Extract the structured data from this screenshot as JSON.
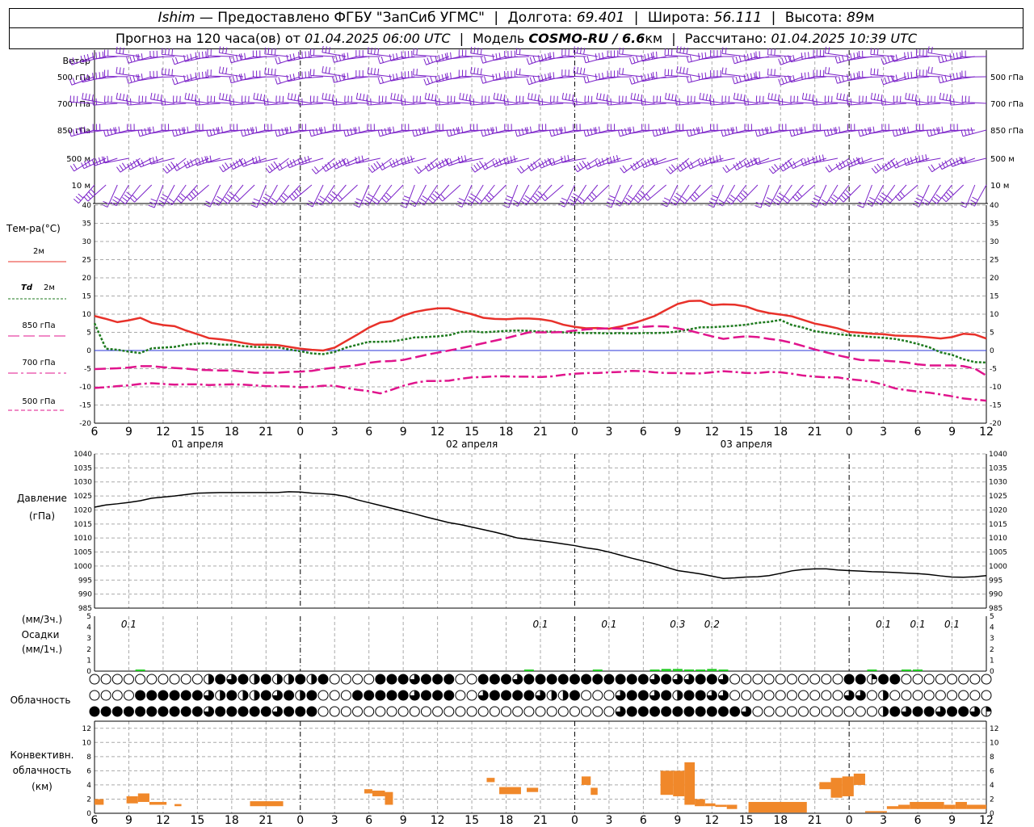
{
  "header": {
    "station": "Ishim",
    "provider": "— Предоставлено ФГБУ \"ЗапСиб УГМС\"",
    "lon_label": "Долгота:",
    "lon": "69.401",
    "lat_label": "Широта:",
    "lat": "56.111",
    "alt_label": "Высота:",
    "alt": "89",
    "alt_unit": "м",
    "fc_label": "Прогноз на 120 часа(ов) от",
    "fc_start": "01.04.2025 06:00 UTC",
    "model_label": "Модель",
    "model": "COSMO-RU / 6.6",
    "model_unit": "км",
    "calc_label": "Рассчитано:",
    "calc_time": "01.04.2025 10:39 UTC"
  },
  "chart_data": [
    {
      "panel": "wind",
      "type": "wind-barbs",
      "title": "Ветер",
      "levels": [
        "500 гПа",
        "700 гПа",
        "850 гПа",
        "500 м",
        "10 м"
      ],
      "color": "#7b22c9"
    },
    {
      "panel": "temperature",
      "type": "line",
      "title": "Тем-ра(°С)",
      "ylim": [
        -20,
        40
      ],
      "yticks": [
        -20,
        -15,
        -10,
        -5,
        0,
        5,
        10,
        15,
        20,
        25,
        30,
        35,
        40
      ],
      "x_hours": [
        6,
        7,
        8,
        9,
        10,
        11,
        12,
        13,
        14,
        15,
        16,
        17,
        18,
        19,
        20,
        21,
        22,
        23,
        24,
        25,
        26,
        27,
        28,
        29,
        30,
        31,
        32,
        33,
        34,
        35,
        36,
        37,
        38,
        39,
        40,
        41,
        42,
        43,
        44,
        45,
        46,
        47,
        48,
        49,
        50,
        51,
        52,
        53,
        54,
        55,
        56,
        57,
        58,
        59,
        60,
        61,
        62,
        63,
        64,
        65,
        66,
        67,
        68,
        69,
        70,
        71,
        72,
        73,
        74,
        75,
        76,
        77,
        78,
        79,
        80,
        81,
        82,
        83,
        84
      ],
      "series": [
        {
          "name": "2м",
          "style": "solid",
          "color": "#e8312a",
          "values": [
            9.5,
            8.7,
            7.8,
            8.3,
            9.0,
            7.6,
            7.0,
            6.7,
            5.5,
            4.5,
            3.4,
            3.1,
            2.7,
            2.1,
            1.6,
            1.6,
            1.5,
            1.0,
            0.5,
            0.2,
            0.0,
            0.8,
            2.6,
            4.4,
            6.3,
            7.7,
            8.1,
            9.6,
            10.6,
            11.2,
            11.6,
            11.6,
            10.7,
            10.0,
            9.0,
            8.7,
            8.6,
            8.8,
            8.8,
            8.6,
            8.1,
            7.1,
            6.5,
            6.1,
            6.2,
            6.0,
            6.6,
            7.4,
            8.4,
            9.5,
            11.2,
            12.8,
            13.6,
            13.7,
            12.5,
            12.7,
            12.6,
            12.1,
            11.0,
            10.3,
            9.9,
            9.4,
            8.4,
            7.4,
            6.8,
            6.1,
            5.1,
            4.9,
            4.6,
            4.5,
            4.1,
            4.0,
            3.9,
            3.6,
            3.3,
            3.7,
            4.6,
            4.4,
            3.3
          ]
        },
        {
          "name": "Td 2м",
          "style": "dotted",
          "color": "#1e7a1e",
          "values": [
            7.5,
            0.5,
            0.2,
            -0.3,
            -0.7,
            0.6,
            0.8,
            1.0,
            1.6,
            1.9,
            2.0,
            1.6,
            1.6,
            1.2,
            1.0,
            0.9,
            0.9,
            0.3,
            -0.2,
            -0.8,
            -1.0,
            -0.4,
            0.8,
            1.6,
            2.4,
            2.4,
            2.5,
            3.0,
            3.6,
            3.7,
            3.9,
            4.2,
            5.1,
            5.3,
            5.0,
            5.2,
            5.4,
            5.5,
            5.4,
            5.2,
            5.2,
            5.0,
            4.9,
            4.8,
            4.8,
            4.7,
            4.8,
            4.7,
            4.8,
            4.8,
            4.9,
            5.2,
            5.8,
            6.4,
            6.4,
            6.6,
            6.8,
            7.1,
            7.6,
            7.9,
            8.4,
            7.0,
            6.3,
            5.3,
            4.9,
            4.5,
            4.2,
            4.0,
            3.7,
            3.5,
            3.2,
            2.6,
            1.8,
            0.9,
            -0.5,
            -1.2,
            -2.4,
            -3.2,
            -3.3
          ]
        },
        {
          "name": "850 гПа",
          "style": "dashed",
          "color": "#e0148c",
          "values": [
            -5.1,
            -5.0,
            -4.9,
            -4.7,
            -4.3,
            -4.3,
            -4.6,
            -4.8,
            -5.0,
            -5.3,
            -5.4,
            -5.5,
            -5.5,
            -5.8,
            -6.1,
            -6.1,
            -6.1,
            -5.9,
            -5.8,
            -5.6,
            -5.1,
            -4.7,
            -4.4,
            -4.0,
            -3.4,
            -3.0,
            -2.9,
            -2.6,
            -1.9,
            -1.2,
            -0.6,
            0.0,
            0.6,
            1.3,
            2.0,
            2.7,
            3.4,
            4.2,
            5.0,
            5.0,
            5.0,
            5.1,
            5.5,
            5.8,
            6.0,
            6.1,
            6.0,
            6.2,
            6.5,
            6.7,
            6.6,
            6.1,
            5.5,
            4.7,
            3.9,
            3.2,
            3.6,
            3.9,
            3.7,
            3.2,
            2.8,
            2.1,
            1.2,
            0.3,
            -0.5,
            -1.3,
            -2.0,
            -2.6,
            -2.7,
            -2.8,
            -3.0,
            -3.3,
            -3.8,
            -4.1,
            -4.1,
            -4.1,
            -4.3,
            -5.0,
            -6.9
          ]
        },
        {
          "name": "700 гПа",
          "style": "dashdot",
          "color": "#e0148c",
          "values": [
            -10.3,
            -10.1,
            -9.8,
            -9.6,
            -9.2,
            -9.0,
            -9.2,
            -9.4,
            -9.3,
            -9.3,
            -9.5,
            -9.4,
            -9.3,
            -9.4,
            -9.6,
            -9.8,
            -9.8,
            -9.9,
            -10.1,
            -10.0,
            -9.7,
            -9.7,
            -10.3,
            -10.8,
            -11.2,
            -11.8,
            -10.8,
            -9.7,
            -8.9,
            -8.4,
            -8.4,
            -8.3,
            -7.8,
            -7.4,
            -7.3,
            -7.1,
            -7.1,
            -7.2,
            -7.2,
            -7.3,
            -7.1,
            -6.7,
            -6.4,
            -6.2,
            -6.2,
            -6.0,
            -5.9,
            -5.6,
            -5.7,
            -6.0,
            -6.2,
            -6.2,
            -6.3,
            -6.3,
            -6.0,
            -5.7,
            -5.9,
            -6.2,
            -6.2,
            -5.9,
            -6.0,
            -6.4,
            -6.9,
            -7.2,
            -7.4,
            -7.4,
            -7.9,
            -8.2,
            -8.6,
            -9.4,
            -10.4,
            -10.9,
            -11.3,
            -11.6,
            -12.1,
            -12.6,
            -13.2,
            -13.5,
            -13.8
          ]
        }
      ],
      "legend_extra": [
        "500 гПа"
      ]
    },
    {
      "panel": "pressure",
      "type": "line",
      "title": "Давление",
      "subtitle": "(гПа)",
      "ylim": [
        985,
        1040
      ],
      "yticks": [
        985,
        990,
        995,
        1000,
        1005,
        1010,
        1015,
        1020,
        1025,
        1030,
        1035,
        1040
      ],
      "series": [
        {
          "name": "",
          "color": "#000000",
          "values": [
            1021.0,
            1021.8,
            1022.2,
            1022.7,
            1023.3,
            1024.2,
            1024.6,
            1025.0,
            1025.5,
            1026.0,
            1026.1,
            1026.2,
            1026.2,
            1026.2,
            1026.2,
            1026.2,
            1026.2,
            1026.5,
            1026.4,
            1026.0,
            1025.8,
            1025.5,
            1024.8,
            1023.6,
            1022.6,
            1021.6,
            1020.6,
            1019.6,
            1018.6,
            1017.5,
            1016.5,
            1015.5,
            1014.8,
            1013.9,
            1013.0,
            1012.1,
            1011.1,
            1010.0,
            1009.5,
            1009.0,
            1008.5,
            1007.9,
            1007.3,
            1006.5,
            1005.9,
            1005.0,
            1003.9,
            1002.8,
            1001.8,
            1000.8,
            999.6,
            998.4,
            997.8,
            997.2,
            996.4,
            995.6,
            995.8,
            996.1,
            996.2,
            996.6,
            997.4,
            998.3,
            998.8,
            999.0,
            999.0,
            998.6,
            998.4,
            998.2,
            998.0,
            997.9,
            997.7,
            997.5,
            997.3,
            997.0,
            996.5,
            996.1,
            996.0,
            996.2,
            996.6
          ]
        }
      ]
    },
    {
      "panel": "precipitation",
      "type": "bar",
      "title": "Осадки",
      "unit_3h": "(мм/3ч.)",
      "unit_1h": "(мм/1ч.)",
      "ylim": [
        0,
        5
      ],
      "yticks": [
        0,
        1,
        2,
        3,
        4,
        5
      ],
      "labels": [
        {
          "hour": 9,
          "text": "0.1"
        },
        {
          "hour": 45,
          "text": "0.1"
        },
        {
          "hour": 51,
          "text": "0.1"
        },
        {
          "hour": 57,
          "text": "0.3"
        },
        {
          "hour": 60,
          "text": "0.2"
        },
        {
          "hour": 75,
          "text": "0.1"
        },
        {
          "hour": 78,
          "text": "0.1"
        },
        {
          "hour": 81,
          "text": "0.1"
        }
      ],
      "bars": [
        {
          "hour": 10,
          "value": 0.08
        },
        {
          "hour": 44,
          "value": 0.08
        },
        {
          "hour": 50,
          "value": 0.08
        },
        {
          "hour": 55,
          "value": 0.12
        },
        {
          "hour": 56,
          "value": 0.2
        },
        {
          "hour": 57,
          "value": 0.2
        },
        {
          "hour": 58,
          "value": 0.15
        },
        {
          "hour": 59,
          "value": 0.12
        },
        {
          "hour": 60,
          "value": 0.2
        },
        {
          "hour": 61,
          "value": 0.12
        },
        {
          "hour": 74,
          "value": 0.05
        },
        {
          "hour": 77,
          "value": 0.05
        },
        {
          "hour": 78,
          "value": 0.05
        }
      ],
      "color": "#22cc22"
    },
    {
      "panel": "clouds",
      "type": "symbols",
      "title": "Облачность",
      "rows": [
        "00000000002434242242400004443444004443444444444443433443000000000044144000000004444444444444444444",
        "00004444443242243424000444443444003444432240003443424433000000000033020000000004444444444444444444",
        "44444444443444443444000000000000000000000000003444444444430000000000024344344314400004434444444444"
      ]
    },
    {
      "panel": "convective",
      "type": "bar",
      "title": "Конвективн.",
      "subtitle": "облачность",
      "unit": "(км)",
      "ylim": [
        0,
        13
      ],
      "yticks": [
        0,
        2,
        4,
        6,
        8,
        10,
        12
      ],
      "color": "#f0882a",
      "bars": [
        {
          "h0": 6,
          "h1": 6.8,
          "bot": 1.2,
          "top": 2.0
        },
        {
          "h0": 8.8,
          "h1": 9.8,
          "bot": 1.4,
          "top": 2.4
        },
        {
          "h0": 9.8,
          "h1": 10.8,
          "bot": 1.6,
          "top": 2.8
        },
        {
          "h0": 10.8,
          "h1": 12.3,
          "bot": 1.2,
          "top": 1.6
        },
        {
          "h0": 13,
          "h1": 13.6,
          "bot": 1.0,
          "top": 1.3
        },
        {
          "h0": 19.6,
          "h1": 22.5,
          "bot": 1.0,
          "top": 1.7
        },
        {
          "h0": 29.6,
          "h1": 30.3,
          "bot": 2.8,
          "top": 3.4
        },
        {
          "h0": 30.3,
          "h1": 31.4,
          "bot": 2.4,
          "top": 3.2
        },
        {
          "h0": 31.4,
          "h1": 32.1,
          "bot": 1.2,
          "top": 3.0
        },
        {
          "h0": 40.3,
          "h1": 41,
          "bot": 4.4,
          "top": 5.0
        },
        {
          "h0": 41.4,
          "h1": 43.3,
          "bot": 2.7,
          "top": 3.7
        },
        {
          "h0": 43.8,
          "h1": 44.8,
          "bot": 3.0,
          "top": 3.6
        },
        {
          "h0": 48.6,
          "h1": 49.4,
          "bot": 4.0,
          "top": 5.2
        },
        {
          "h0": 49.4,
          "h1": 50.0,
          "bot": 2.6,
          "top": 3.6
        },
        {
          "h0": 55.5,
          "h1": 56.6,
          "bot": 2.6,
          "top": 6.0
        },
        {
          "h0": 56.6,
          "h1": 57.6,
          "bot": 2.4,
          "top": 6.0
        },
        {
          "h0": 57.6,
          "h1": 58.5,
          "bot": 1.2,
          "top": 7.2
        },
        {
          "h0": 58.5,
          "h1": 59.4,
          "bot": 1.0,
          "top": 2.0
        },
        {
          "h0": 59.4,
          "h1": 60.3,
          "bot": 1.0,
          "top": 1.4
        },
        {
          "h0": 60.3,
          "h1": 61.3,
          "bot": 0.9,
          "top": 1.2
        },
        {
          "h0": 61.3,
          "h1": 62.2,
          "bot": 0.6,
          "top": 1.2
        },
        {
          "h0": 63.2,
          "h1": 68.3,
          "bot": 0.1,
          "top": 1.6
        },
        {
          "h0": 69.4,
          "h1": 70.4,
          "bot": 3.4,
          "top": 4.4
        },
        {
          "h0": 70.4,
          "h1": 71.4,
          "bot": 2.2,
          "top": 5.0
        },
        {
          "h0": 71.4,
          "h1": 72.4,
          "bot": 2.4,
          "top": 5.2
        },
        {
          "h0": 72.4,
          "h1": 73.4,
          "bot": 4.0,
          "top": 5.6
        },
        {
          "h0": 73.4,
          "h1": 75.3,
          "bot": 0.1,
          "top": 0.3
        },
        {
          "h0": 75.3,
          "h1": 76.3,
          "bot": 0.6,
          "top": 1.0
        },
        {
          "h0": 76.3,
          "h1": 77.3,
          "bot": 0.6,
          "top": 1.2
        },
        {
          "h0": 77.3,
          "h1": 80.3,
          "bot": 0.6,
          "top": 1.6
        },
        {
          "h0": 80.3,
          "h1": 81.3,
          "bot": 0.6,
          "top": 1.2
        },
        {
          "h0": 81.3,
          "h1": 82.3,
          "bot": 0.6,
          "top": 1.6
        },
        {
          "h0": 82.3,
          "h1": 84,
          "bot": 0.6,
          "top": 1.2
        }
      ]
    }
  ],
  "x_axis": {
    "hour_ticks": [
      "6",
      "9",
      "12",
      "15",
      "18",
      "21",
      "0",
      "3",
      "6",
      "9",
      "12",
      "15",
      "18",
      "21",
      "0",
      "3",
      "6",
      "9",
      "12",
      "15",
      "18",
      "21",
      "0",
      "3",
      "6",
      "9",
      "12"
    ],
    "date_labels": [
      "01 апреля",
      "02 апреля",
      "03 апреля"
    ]
  }
}
